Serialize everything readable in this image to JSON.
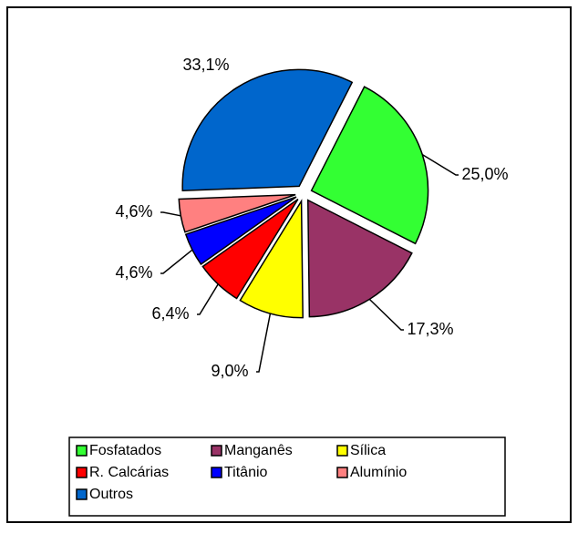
{
  "chart_data": {
    "type": "pie",
    "categories": [
      "Fosfatados",
      "Manganês",
      "Sílica",
      "R. Calcárias",
      "Titânio",
      "Alumínio",
      "Outros"
    ],
    "values": [
      25.0,
      17.3,
      9.0,
      6.4,
      4.6,
      4.6,
      33.1
    ],
    "value_labels": [
      "25,0%",
      "17,3%",
      "9,0%",
      "6,4%",
      "4,6%",
      "4,6%",
      "33,1%"
    ],
    "colors": [
      "#33ff33",
      "#993366",
      "#ffff00",
      "#ff0000",
      "#0000ff",
      "#ff8080",
      "#0066cc"
    ],
    "legend": "bottom"
  }
}
